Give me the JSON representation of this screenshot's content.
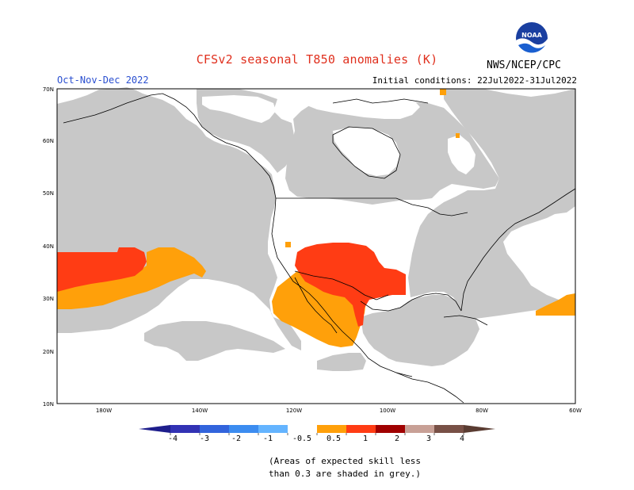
{
  "header": {
    "title": "CFSv2 seasonal T850 anomalies (K)",
    "season": "Oct-Nov-Dec 2022",
    "initial_conditions": "Initial conditions: 22Jul2022-31Jul2022",
    "agency": "NWS/NCEP/CPC",
    "logo_text": "NOAA"
  },
  "map": {
    "lat_labels": [
      "70N",
      "60N",
      "50N",
      "40N",
      "30N",
      "20N",
      "10N"
    ],
    "lon_labels": [
      "180W",
      "140W",
      "120W",
      "100W",
      "80W",
      "60W"
    ],
    "colors": {
      "skill_grey": "#c8c8c8",
      "anom_0_5_1": "#ffa00a",
      "anom_1_2": "#ff3c14",
      "coast": "#000000"
    }
  },
  "colorbar": {
    "labels": [
      "-4",
      "-3",
      "-2",
      "-1",
      "-0.5",
      "0.5",
      "1",
      "2",
      "3",
      "4"
    ],
    "colors": [
      "#3232b4",
      "#3264dc",
      "#3c8cf0",
      "#64b4ff",
      "#ffffff",
      "#ffa00a",
      "#ff3c14",
      "#a00000",
      "#c8a096",
      "#785046"
    ],
    "low_end_color": "#1e1e8c",
    "high_end_color": "#5a3c32"
  },
  "footnote": {
    "line1": "(Areas of expected skill less",
    "line2": "than 0.3 are shaded in grey.)"
  }
}
